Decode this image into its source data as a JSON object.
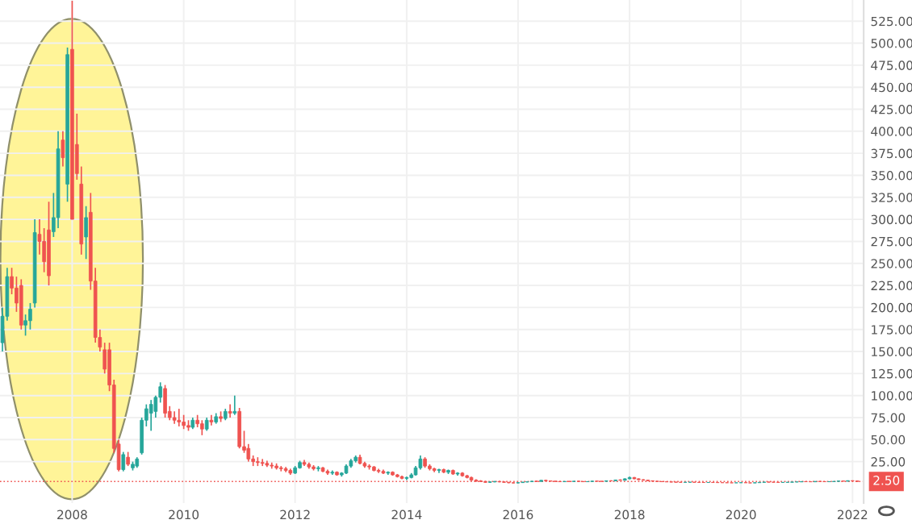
{
  "chart_data": {
    "type": "candlestick",
    "x": [
      "2006-10",
      "2006-11",
      "2006-12",
      "2007-01",
      "2007-02",
      "2007-03",
      "2007-04",
      "2007-05",
      "2007-06",
      "2007-07",
      "2007-08",
      "2007-09",
      "2007-10",
      "2007-11",
      "2007-12",
      "2008-01",
      "2008-02",
      "2008-03",
      "2008-04",
      "2008-05",
      "2008-06",
      "2008-07",
      "2008-08",
      "2008-09",
      "2008-10",
      "2008-11",
      "2008-12",
      "2009-01",
      "2009-02",
      "2009-03",
      "2009-04",
      "2009-05",
      "2009-06",
      "2009-07",
      "2009-08",
      "2009-09",
      "2009-10",
      "2009-11",
      "2009-12",
      "2010-01",
      "2010-02",
      "2010-03",
      "2010-04",
      "2010-05",
      "2010-06",
      "2010-07",
      "2010-08",
      "2010-09",
      "2010-10",
      "2010-11",
      "2010-12",
      "2011-01",
      "2011-02",
      "2011-03",
      "2011-04",
      "2011-05",
      "2011-06",
      "2011-07",
      "2011-08",
      "2011-09",
      "2011-10",
      "2011-11",
      "2011-12",
      "2012-01",
      "2012-02",
      "2012-03",
      "2012-04",
      "2012-05",
      "2012-06",
      "2012-07",
      "2012-08",
      "2012-09",
      "2012-10",
      "2012-11",
      "2012-12",
      "2013-01",
      "2013-02",
      "2013-03",
      "2013-04",
      "2013-05",
      "2013-06",
      "2013-07",
      "2013-08",
      "2013-09",
      "2013-10",
      "2013-11",
      "2013-12",
      "2014-01",
      "2014-02",
      "2014-03",
      "2014-04",
      "2014-05",
      "2014-06",
      "2014-07",
      "2014-08",
      "2014-09",
      "2014-10",
      "2014-11",
      "2014-12",
      "2015-01",
      "2015-02",
      "2015-03",
      "2015-04",
      "2015-05",
      "2015-06",
      "2015-07",
      "2015-08",
      "2015-09",
      "2015-10",
      "2015-11",
      "2015-12",
      "2016-01",
      "2016-02",
      "2016-03",
      "2016-04",
      "2016-05",
      "2016-06",
      "2016-07",
      "2016-08",
      "2016-09",
      "2016-10",
      "2016-11",
      "2016-12",
      "2017-01",
      "2017-02",
      "2017-03",
      "2017-04",
      "2017-05",
      "2017-06",
      "2017-07",
      "2017-08",
      "2017-09",
      "2017-10",
      "2017-11",
      "2017-12",
      "2018-01",
      "2018-02",
      "2018-03",
      "2018-04",
      "2018-05",
      "2018-06",
      "2018-07",
      "2018-08",
      "2018-09",
      "2018-10",
      "2018-11",
      "2018-12",
      "2019-01",
      "2019-02",
      "2019-03",
      "2019-04",
      "2019-05",
      "2019-06",
      "2019-07",
      "2019-08",
      "2019-09",
      "2019-10",
      "2019-11",
      "2019-12",
      "2020-01",
      "2020-02",
      "2020-03",
      "2020-04",
      "2020-05",
      "2020-06",
      "2020-07",
      "2020-08",
      "2020-09",
      "2020-10",
      "2020-11",
      "2020-12",
      "2021-01",
      "2021-02",
      "2021-03",
      "2021-04",
      "2021-05",
      "2021-06",
      "2021-07",
      "2021-08",
      "2021-09",
      "2021-10",
      "2021-11",
      "2021-12",
      "2022-01",
      "2022-02"
    ],
    "ohlc": [
      [
        160,
        200,
        150,
        190
      ],
      [
        190,
        245,
        185,
        235
      ],
      [
        235,
        245,
        215,
        222
      ],
      [
        222,
        235,
        195,
        205
      ],
      [
        225,
        232,
        175,
        180
      ],
      [
        180,
        192,
        168,
        185
      ],
      [
        185,
        205,
        175,
        198
      ],
      [
        205,
        300,
        200,
        285
      ],
      [
        283,
        300,
        260,
        275
      ],
      [
        275,
        290,
        240,
        252
      ],
      [
        288,
        320,
        225,
        236
      ],
      [
        286,
        330,
        280,
        302
      ],
      [
        302,
        400,
        290,
        380
      ],
      [
        390,
        400,
        360,
        370
      ],
      [
        340,
        495,
        320,
        487
      ],
      [
        493,
        548,
        300,
        300
      ],
      [
        385,
        420,
        345,
        352
      ],
      [
        340,
        360,
        260,
        272
      ],
      [
        280,
        315,
        255,
        302
      ],
      [
        308,
        330,
        220,
        230
      ],
      [
        230,
        245,
        160,
        166
      ],
      [
        166,
        175,
        150,
        155
      ],
      [
        152,
        160,
        125,
        130
      ],
      [
        152,
        160,
        105,
        112
      ],
      [
        112,
        118,
        35,
        40
      ],
      [
        45,
        50,
        14,
        16
      ],
      [
        16,
        36,
        14,
        33
      ],
      [
        30,
        36,
        20,
        22
      ],
      [
        18,
        25,
        15,
        22
      ],
      [
        20,
        30,
        18,
        28
      ],
      [
        35,
        75,
        33,
        72
      ],
      [
        72,
        90,
        65,
        85
      ],
      [
        80,
        95,
        60,
        90
      ],
      [
        82,
        100,
        75,
        98
      ],
      [
        98,
        115,
        92,
        110
      ],
      [
        108,
        112,
        75,
        80
      ],
      [
        82,
        88,
        72,
        75
      ],
      [
        75,
        82,
        68,
        72
      ],
      [
        72,
        85,
        65,
        70
      ],
      [
        70,
        78,
        62,
        66
      ],
      [
        66,
        72,
        60,
        64
      ],
      [
        64,
        75,
        62,
        72
      ],
      [
        72,
        78,
        64,
        68
      ],
      [
        68,
        72,
        55,
        62
      ],
      [
        62,
        75,
        60,
        72
      ],
      [
        72,
        78,
        66,
        70
      ],
      [
        70,
        80,
        68,
        76
      ],
      [
        76,
        82,
        70,
        74
      ],
      [
        74,
        85,
        72,
        82
      ],
      [
        82,
        90,
        75,
        80
      ],
      [
        80,
        100,
        78,
        82
      ],
      [
        82,
        86,
        40,
        42
      ],
      [
        42,
        60,
        35,
        38
      ],
      [
        40,
        45,
        25,
        28
      ],
      [
        28,
        32,
        20,
        25
      ],
      [
        25,
        30,
        20,
        24
      ],
      [
        24,
        28,
        20,
        23
      ],
      [
        23,
        26,
        19,
        21
      ],
      [
        21,
        24,
        17,
        20
      ],
      [
        20,
        23,
        16,
        18
      ],
      [
        18,
        20,
        14,
        17
      ],
      [
        17,
        19,
        13,
        15
      ],
      [
        15,
        17,
        10,
        12
      ],
      [
        12,
        20,
        11,
        18
      ],
      [
        18,
        26,
        17,
        24
      ],
      [
        24,
        27,
        20,
        22
      ],
      [
        22,
        24,
        17,
        19
      ],
      [
        19,
        21,
        15,
        17
      ],
      [
        17,
        20,
        14,
        18
      ],
      [
        18,
        19,
        13,
        14
      ],
      [
        14,
        16,
        10,
        12
      ],
      [
        12,
        15,
        10,
        13
      ],
      [
        13,
        14,
        9,
        10
      ],
      [
        10,
        13,
        8,
        12
      ],
      [
        12,
        22,
        11,
        20
      ],
      [
        20,
        28,
        18,
        26
      ],
      [
        26,
        32,
        24,
        30
      ],
      [
        30,
        33,
        22,
        23
      ],
      [
        23,
        25,
        18,
        20
      ],
      [
        20,
        22,
        16,
        19
      ],
      [
        19,
        20,
        14,
        15
      ],
      [
        15,
        17,
        12,
        14
      ],
      [
        14,
        16,
        11,
        12
      ],
      [
        12,
        14,
        10,
        13
      ],
      [
        13,
        14,
        9,
        10
      ],
      [
        10,
        11,
        7,
        8
      ],
      [
        8,
        9,
        5,
        6
      ],
      [
        6,
        8,
        4,
        7
      ],
      [
        7,
        12,
        6,
        10
      ],
      [
        10,
        20,
        9,
        18
      ],
      [
        18,
        32,
        16,
        28
      ],
      [
        28,
        30,
        18,
        20
      ],
      [
        20,
        22,
        15,
        17
      ],
      [
        17,
        18,
        13,
        15
      ],
      [
        15,
        17,
        12,
        16
      ],
      [
        16,
        17,
        12,
        13
      ],
      [
        13,
        16,
        11,
        15
      ],
      [
        15,
        16,
        10,
        11
      ],
      [
        11,
        13,
        9,
        12
      ],
      [
        12,
        13,
        8,
        9
      ],
      [
        9,
        10,
        6,
        7
      ],
      [
        7,
        8,
        3,
        4
      ],
      [
        4,
        5,
        2,
        3
      ],
      [
        3,
        4,
        2,
        2.5
      ],
      [
        2.5,
        3,
        1,
        1.5
      ],
      [
        1.5,
        2.5,
        1,
        2
      ],
      [
        2,
        3,
        1.5,
        2.5
      ],
      [
        2.5,
        3,
        1.5,
        2
      ],
      [
        2,
        2.5,
        1,
        1.5
      ],
      [
        1.5,
        2,
        0.5,
        1
      ],
      [
        1,
        1.5,
        0.5,
        0.8
      ],
      [
        0.8,
        1.5,
        0.5,
        1.2
      ],
      [
        1.2,
        2,
        1,
        1.8
      ],
      [
        1.8,
        2.5,
        1.5,
        2.2
      ],
      [
        2.2,
        3,
        2,
        2.8
      ],
      [
        2.8,
        3.5,
        2.2,
        2.5
      ],
      [
        2.5,
        4,
        2.3,
        3.8
      ],
      [
        3.8,
        4.5,
        3,
        3.2
      ],
      [
        3.2,
        3.5,
        2.5,
        2.8
      ],
      [
        2.8,
        3.2,
        2.2,
        2.5
      ],
      [
        2.5,
        3,
        2,
        2.2
      ],
      [
        2.2,
        2.8,
        1.8,
        2.6
      ],
      [
        2.6,
        3,
        2.2,
        2.4
      ],
      [
        2.4,
        3,
        2.2,
        2.8
      ],
      [
        2.8,
        3.2,
        2.3,
        2.5
      ],
      [
        2.5,
        2.8,
        2,
        2.2
      ],
      [
        2.2,
        2.6,
        1.8,
        2.4
      ],
      [
        2.4,
        3,
        2.2,
        2.9
      ],
      [
        2.9,
        3.3,
        2.5,
        2.7
      ],
      [
        2.7,
        3,
        2.3,
        2.6
      ],
      [
        2.6,
        3.5,
        2.5,
        3.3
      ],
      [
        3.3,
        3.8,
        2.8,
        3.1
      ],
      [
        3.1,
        4.5,
        3,
        4.2
      ],
      [
        4.2,
        5,
        3.5,
        3.8
      ],
      [
        3.8,
        6,
        3.6,
        5.5
      ],
      [
        5.5,
        8,
        5,
        7
      ],
      [
        7,
        7.5,
        5,
        5.5
      ],
      [
        5.5,
        6,
        4,
        4.5
      ],
      [
        4.5,
        5,
        3.5,
        4
      ],
      [
        4,
        4.5,
        3,
        3.3
      ],
      [
        3.3,
        3.6,
        2.5,
        2.8
      ],
      [
        2.8,
        3,
        2.2,
        2.5
      ],
      [
        2.5,
        2.8,
        2,
        2.2
      ],
      [
        2.2,
        2.5,
        1.8,
        2
      ],
      [
        2,
        2.3,
        1.5,
        1.8
      ],
      [
        1.8,
        2,
        1.4,
        1.6
      ],
      [
        1.6,
        1.9,
        1.3,
        1.5
      ],
      [
        1.5,
        1.8,
        1.3,
        1.6
      ],
      [
        1.6,
        1.9,
        1.4,
        1.7
      ],
      [
        1.7,
        1.9,
        1.4,
        1.5
      ],
      [
        1.5,
        1.7,
        1.3,
        1.4
      ],
      [
        1.4,
        1.6,
        1.2,
        1.3
      ],
      [
        1.3,
        1.5,
        1.1,
        1.4
      ],
      [
        1.4,
        1.6,
        1.2,
        1.3
      ],
      [
        1.3,
        1.4,
        1.1,
        1.2
      ],
      [
        1.2,
        1.4,
        1,
        1.1
      ],
      [
        1.1,
        1.3,
        0.9,
        1
      ],
      [
        1,
        1.2,
        0.8,
        0.9
      ],
      [
        0.9,
        1.1,
        0.8,
        1
      ],
      [
        1,
        1.3,
        0.9,
        1.2
      ],
      [
        1.2,
        1.4,
        0.9,
        1
      ],
      [
        1,
        1.1,
        0.6,
        0.8
      ],
      [
        0.8,
        1.2,
        0.7,
        1.1
      ],
      [
        1.1,
        1.6,
        1,
        1.5
      ],
      [
        1.5,
        2,
        1.3,
        1.8
      ],
      [
        1.8,
        2.2,
        1.5,
        1.7
      ],
      [
        1.7,
        2,
        1.4,
        1.6
      ],
      [
        1.6,
        1.8,
        1.3,
        1.4
      ],
      [
        1.4,
        1.7,
        1.2,
        1.5
      ],
      [
        1.5,
        1.8,
        1.3,
        1.6
      ],
      [
        1.6,
        2,
        1.4,
        1.9
      ],
      [
        1.9,
        2.3,
        1.6,
        2
      ],
      [
        2,
        2.6,
        1.8,
        2.4
      ],
      [
        2.4,
        2.7,
        2,
        2.2
      ],
      [
        2.2,
        2.5,
        1.9,
        2.1
      ],
      [
        2.1,
        2.8,
        2,
        2.6
      ],
      [
        2.6,
        2.9,
        2.2,
        2.4
      ],
      [
        2.4,
        2.6,
        2,
        2.2
      ],
      [
        2.2,
        2.5,
        1.9,
        2.3
      ],
      [
        2.3,
        2.8,
        2.1,
        2.6
      ],
      [
        2.6,
        3.2,
        2.4,
        3
      ],
      [
        3,
        3.4,
        2.6,
        2.8
      ],
      [
        2.8,
        3.6,
        2.5,
        3.4
      ],
      [
        3.4,
        3.7,
        2.8,
        3.1
      ],
      [
        3.1,
        3.5,
        2.3,
        2.5
      ]
    ],
    "xlim": [
      "2006-09-15",
      "2022-03-15"
    ],
    "xticks": [
      {
        "value": "2008",
        "label": "2008"
      },
      {
        "value": "2010",
        "label": "2010"
      },
      {
        "value": "2012",
        "label": "2012"
      },
      {
        "value": "2014",
        "label": "2014"
      },
      {
        "value": "2016",
        "label": "2016"
      },
      {
        "value": "2018",
        "label": "2018"
      },
      {
        "value": "2020",
        "label": "2020"
      },
      {
        "value": "2022",
        "label": "2022"
      }
    ],
    "ylim": [
      -22,
      549
    ],
    "yticks": [
      {
        "value": 25,
        "label": "25.00"
      },
      {
        "value": 50,
        "label": "50.00"
      },
      {
        "value": 75,
        "label": "75.00"
      },
      {
        "value": 100,
        "label": "100.00"
      },
      {
        "value": 125,
        "label": "125.00"
      },
      {
        "value": 150,
        "label": "150.00"
      },
      {
        "value": 175,
        "label": "175.00"
      },
      {
        "value": 200,
        "label": "200.00"
      },
      {
        "value": 225,
        "label": "225.00"
      },
      {
        "value": 250,
        "label": "250.00"
      },
      {
        "value": 275,
        "label": "275.00"
      },
      {
        "value": 300,
        "label": "300.00"
      },
      {
        "value": 325,
        "label": "325.00"
      },
      {
        "value": 350,
        "label": "350.00"
      },
      {
        "value": 375,
        "label": "375.00"
      },
      {
        "value": 400,
        "label": "400.00"
      },
      {
        "value": 425,
        "label": "425.00"
      },
      {
        "value": 450,
        "label": "450.00"
      },
      {
        "value": 475,
        "label": "475.00"
      },
      {
        "value": 500,
        "label": "500.00"
      },
      {
        "value": 525,
        "label": "525.00"
      }
    ],
    "ref_lines": [
      {
        "axis": "y",
        "value": 2.5,
        "label": "2.50",
        "color": "#ef5350",
        "line_style": "dotted"
      }
    ],
    "grid": true
  }
}
